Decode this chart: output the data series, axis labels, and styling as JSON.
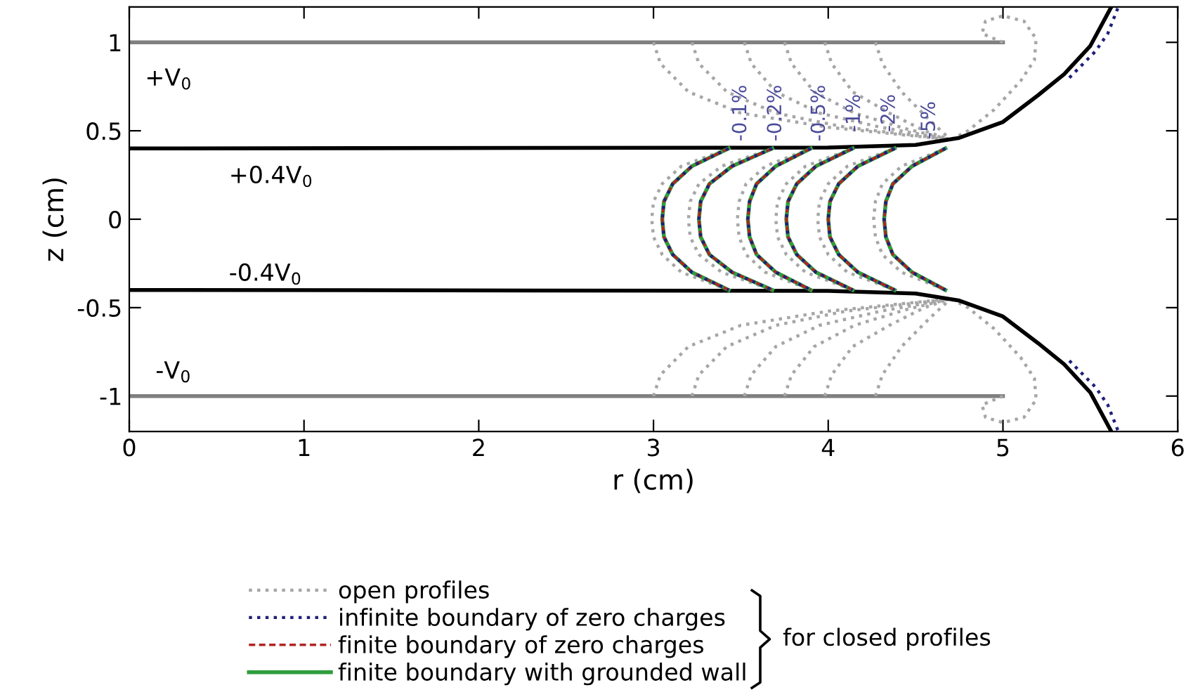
{
  "chart_data": {
    "type": "line",
    "xlabel": "r (cm)",
    "ylabel": "z (cm)",
    "xlim": [
      0,
      6
    ],
    "ylim": [
      -1.2,
      1.2
    ],
    "xticks": [
      0,
      1,
      2,
      3,
      4,
      5,
      6
    ],
    "yticks": [
      -1,
      -0.5,
      0,
      0.5,
      1
    ],
    "grid": false,
    "legend": "bottom",
    "series": [
      {
        "color": "#808080",
        "line_style": "solid",
        "x": [
          0,
          5
        ],
        "values": [
          1,
          1
        ]
      },
      {
        "color": "#808080",
        "line_style": "solid",
        "x": [
          0,
          5
        ],
        "values": [
          -1,
          -1
        ]
      },
      {
        "name": "open profiles",
        "color": "#a6a6a6",
        "line_style": "dotted",
        "x": [
          5.0,
          4.88,
          4.9,
          5.0,
          5.12,
          5.19,
          5.18,
          5.1,
          4.95,
          4.8,
          4.7
        ],
        "values": [
          1,
          1.05,
          1.12,
          1.15,
          1.12,
          1.02,
          0.9,
          0.78,
          0.62,
          0.5,
          0.45
        ]
      },
      {
        "color": "#a6a6a6",
        "line_style": "dotted",
        "x": [
          5.0,
          4.88,
          4.9,
          5.0,
          5.12,
          5.19,
          5.18,
          5.1,
          4.95,
          4.8,
          4.7
        ],
        "values": [
          -1,
          -1.05,
          -1.12,
          -1.15,
          -1.12,
          -1.02,
          -0.9,
          -0.78,
          -0.62,
          -0.5,
          -0.45
        ]
      },
      {
        "color": "#a6a6a6",
        "line_style": "dotted",
        "x": [
          3.0,
          3.04,
          3.2,
          3.5,
          4.0,
          4.7
        ],
        "values": [
          1,
          0.88,
          0.72,
          0.6,
          0.52,
          0.45
        ]
      },
      {
        "color": "#a6a6a6",
        "line_style": "dotted",
        "x": [
          3.22,
          3.26,
          3.42,
          3.7,
          4.1,
          4.7
        ],
        "values": [
          1,
          0.88,
          0.72,
          0.6,
          0.52,
          0.45
        ]
      },
      {
        "color": "#a6a6a6",
        "line_style": "dotted",
        "x": [
          3.52,
          3.56,
          3.7,
          3.95,
          4.3,
          4.7
        ],
        "values": [
          1,
          0.88,
          0.72,
          0.6,
          0.52,
          0.45
        ]
      },
      {
        "color": "#a6a6a6",
        "line_style": "dotted",
        "x": [
          3.75,
          3.79,
          3.92,
          4.15,
          4.45,
          4.7
        ],
        "values": [
          1,
          0.88,
          0.72,
          0.6,
          0.51,
          0.45
        ]
      },
      {
        "color": "#a6a6a6",
        "line_style": "dotted",
        "x": [
          3.98,
          4.02,
          4.14,
          4.35,
          4.55,
          4.7
        ],
        "values": [
          1,
          0.88,
          0.72,
          0.6,
          0.5,
          0.45
        ]
      },
      {
        "color": "#a6a6a6",
        "line_style": "dotted",
        "x": [
          4.27,
          4.31,
          4.42,
          4.58,
          4.7
        ],
        "values": [
          1,
          0.88,
          0.72,
          0.56,
          0.45
        ]
      },
      {
        "color": "#a6a6a6",
        "line_style": "dotted",
        "x": [
          3.0,
          3.04,
          3.2,
          3.5,
          4.0,
          4.7
        ],
        "values": [
          -1,
          -0.88,
          -0.72,
          -0.6,
          -0.52,
          -0.45
        ]
      },
      {
        "color": "#a6a6a6",
        "line_style": "dotted",
        "x": [
          3.22,
          3.26,
          3.42,
          3.7,
          4.1,
          4.7
        ],
        "values": [
          -1,
          -0.88,
          -0.72,
          -0.6,
          -0.52,
          -0.45
        ]
      },
      {
        "color": "#a6a6a6",
        "line_style": "dotted",
        "x": [
          3.52,
          3.56,
          3.7,
          3.95,
          4.3,
          4.7
        ],
        "values": [
          -1,
          -0.88,
          -0.72,
          -0.6,
          -0.52,
          -0.45
        ]
      },
      {
        "color": "#a6a6a6",
        "line_style": "dotted",
        "x": [
          3.75,
          3.79,
          3.92,
          4.15,
          4.45,
          4.7
        ],
        "values": [
          -1,
          -0.88,
          -0.72,
          -0.6,
          -0.51,
          -0.45
        ]
      },
      {
        "color": "#a6a6a6",
        "line_style": "dotted",
        "x": [
          3.98,
          4.02,
          4.14,
          4.35,
          4.55,
          4.7
        ],
        "values": [
          -1,
          -0.88,
          -0.72,
          -0.6,
          -0.5,
          -0.45
        ]
      },
      {
        "color": "#a6a6a6",
        "line_style": "dotted",
        "x": [
          4.27,
          4.31,
          4.42,
          4.58,
          4.7
        ],
        "values": [
          -1,
          -0.88,
          -0.72,
          -0.56,
          -0.45
        ]
      },
      {
        "color": "#a6a6a6",
        "line_style": "dotted",
        "x": [
          3.43,
          3.16,
          3.05,
          3.0,
          2.99,
          3.0,
          3.05,
          3.16,
          3.43
        ],
        "values": [
          0.4,
          0.3,
          0.2,
          0.1,
          0,
          -0.1,
          -0.2,
          -0.3,
          -0.4
        ]
      },
      {
        "color": "#a6a6a6",
        "line_style": "dotted",
        "x": [
          3.68,
          3.39,
          3.26,
          3.21,
          3.2,
          3.21,
          3.26,
          3.39,
          3.68
        ],
        "values": [
          0.4,
          0.3,
          0.2,
          0.1,
          0,
          -0.1,
          -0.2,
          -0.3,
          -0.4
        ]
      },
      {
        "color": "#a6a6a6",
        "line_style": "dotted",
        "x": [
          3.9,
          3.64,
          3.53,
          3.49,
          3.48,
          3.49,
          3.53,
          3.64,
          3.9
        ],
        "values": [
          0.4,
          0.3,
          0.2,
          0.1,
          0,
          -0.1,
          -0.2,
          -0.3,
          -0.4
        ]
      },
      {
        "color": "#a6a6a6",
        "line_style": "dotted",
        "x": [
          4.14,
          3.87,
          3.76,
          3.71,
          3.7,
          3.71,
          3.76,
          3.87,
          4.14
        ],
        "values": [
          0.4,
          0.3,
          0.2,
          0.1,
          0,
          -0.1,
          -0.2,
          -0.3,
          -0.4
        ]
      },
      {
        "color": "#a6a6a6",
        "line_style": "dotted",
        "x": [
          4.38,
          4.11,
          4.0,
          3.95,
          3.94,
          3.95,
          4.0,
          4.11,
          4.38
        ],
        "values": [
          0.4,
          0.3,
          0.2,
          0.1,
          0,
          -0.1,
          -0.2,
          -0.3,
          -0.4
        ]
      },
      {
        "color": "#a6a6a6",
        "line_style": "dotted",
        "x": [
          4.67,
          4.42,
          4.31,
          4.27,
          4.26,
          4.27,
          4.31,
          4.42,
          4.67
        ],
        "values": [
          0.4,
          0.3,
          0.2,
          0.1,
          0,
          -0.1,
          -0.2,
          -0.3,
          -0.4
        ]
      },
      {
        "color": "#000000",
        "line_style": "solid",
        "x": [
          0,
          4.0,
          4.5,
          4.75,
          5.0,
          5.2,
          5.35,
          5.5,
          5.62
        ],
        "values": [
          0.4,
          0.405,
          0.42,
          0.46,
          0.55,
          0.7,
          0.82,
          0.98,
          1.2
        ]
      },
      {
        "color": "#000000",
        "line_style": "solid",
        "x": [
          0,
          4.0,
          4.5,
          4.75,
          5.0,
          5.2,
          5.35,
          5.5,
          5.62
        ],
        "values": [
          -0.4,
          -0.405,
          -0.42,
          -0.46,
          -0.55,
          -0.7,
          -0.82,
          -0.98,
          -1.2
        ]
      },
      {
        "color": "#1f1f7a",
        "line_style": "dotted",
        "x": [
          5.38,
          5.53,
          5.6,
          5.66
        ],
        "values": [
          0.8,
          0.95,
          1.05,
          1.2
        ]
      },
      {
        "color": "#1f1f7a",
        "line_style": "dotted",
        "x": [
          5.38,
          5.53,
          5.6,
          5.66
        ],
        "values": [
          -0.8,
          -0.95,
          -1.05,
          -1.2
        ]
      },
      {
        "name": "finite boundary with grounded wall",
        "color": "#2e9e3e",
        "line_style": "solid",
        "x": [
          3.43,
          3.22,
          3.11,
          3.06,
          3.05,
          3.06,
          3.11,
          3.22,
          3.43
        ],
        "values": [
          0.4,
          0.3,
          0.2,
          0.1,
          0,
          -0.1,
          -0.2,
          -0.3,
          -0.4
        ]
      },
      {
        "color": "#2e9e3e",
        "line_style": "solid",
        "x": [
          3.68,
          3.45,
          3.32,
          3.27,
          3.26,
          3.27,
          3.32,
          3.45,
          3.68
        ],
        "values": [
          0.4,
          0.3,
          0.2,
          0.1,
          0,
          -0.1,
          -0.2,
          -0.3,
          -0.4
        ]
      },
      {
        "color": "#2e9e3e",
        "line_style": "solid",
        "x": [
          3.9,
          3.7,
          3.59,
          3.55,
          3.54,
          3.55,
          3.59,
          3.7,
          3.9
        ],
        "values": [
          0.4,
          0.3,
          0.2,
          0.1,
          0,
          -0.1,
          -0.2,
          -0.3,
          -0.4
        ]
      },
      {
        "color": "#2e9e3e",
        "line_style": "solid",
        "x": [
          4.14,
          3.93,
          3.82,
          3.77,
          3.76,
          3.77,
          3.82,
          3.93,
          4.14
        ],
        "values": [
          0.4,
          0.3,
          0.2,
          0.1,
          0,
          -0.1,
          -0.2,
          -0.3,
          -0.4
        ]
      },
      {
        "color": "#2e9e3e",
        "line_style": "solid",
        "x": [
          4.38,
          4.17,
          4.06,
          4.01,
          4.0,
          4.01,
          4.06,
          4.17,
          4.38
        ],
        "values": [
          0.4,
          0.3,
          0.2,
          0.1,
          0,
          -0.1,
          -0.2,
          -0.3,
          -0.4
        ]
      },
      {
        "color": "#2e9e3e",
        "line_style": "solid",
        "x": [
          4.67,
          4.48,
          4.37,
          4.33,
          4.32,
          4.33,
          4.37,
          4.48,
          4.67
        ],
        "values": [
          0.4,
          0.3,
          0.2,
          0.1,
          0,
          -0.1,
          -0.2,
          -0.3,
          -0.4
        ]
      },
      {
        "name": "finite boundary of zero charges",
        "color": "#b22222",
        "line_style": "dashed",
        "x": [
          3.43,
          3.22,
          3.11,
          3.06,
          3.05,
          3.06,
          3.11,
          3.22,
          3.43
        ],
        "values": [
          0.4,
          0.3,
          0.2,
          0.1,
          0,
          -0.1,
          -0.2,
          -0.3,
          -0.4
        ]
      },
      {
        "color": "#b22222",
        "line_style": "dashed",
        "x": [
          3.68,
          3.45,
          3.32,
          3.27,
          3.26,
          3.27,
          3.32,
          3.45,
          3.68
        ],
        "values": [
          0.4,
          0.3,
          0.2,
          0.1,
          0,
          -0.1,
          -0.2,
          -0.3,
          -0.4
        ]
      },
      {
        "color": "#b22222",
        "line_style": "dashed",
        "x": [
          3.9,
          3.7,
          3.59,
          3.55,
          3.54,
          3.55,
          3.59,
          3.7,
          3.9
        ],
        "values": [
          0.4,
          0.3,
          0.2,
          0.1,
          0,
          -0.1,
          -0.2,
          -0.3,
          -0.4
        ]
      },
      {
        "color": "#b22222",
        "line_style": "dashed",
        "x": [
          4.14,
          3.93,
          3.82,
          3.77,
          3.76,
          3.77,
          3.82,
          3.93,
          4.14
        ],
        "values": [
          0.4,
          0.3,
          0.2,
          0.1,
          0,
          -0.1,
          -0.2,
          -0.3,
          -0.4
        ]
      },
      {
        "color": "#b22222",
        "line_style": "dashed",
        "x": [
          4.38,
          4.17,
          4.06,
          4.01,
          4.0,
          4.01,
          4.06,
          4.17,
          4.38
        ],
        "values": [
          0.4,
          0.3,
          0.2,
          0.1,
          0,
          -0.1,
          -0.2,
          -0.3,
          -0.4
        ]
      },
      {
        "color": "#b22222",
        "line_style": "dashed",
        "x": [
          4.67,
          4.48,
          4.37,
          4.33,
          4.32,
          4.33,
          4.37,
          4.48,
          4.67
        ],
        "values": [
          0.4,
          0.3,
          0.2,
          0.1,
          0,
          -0.1,
          -0.2,
          -0.3,
          -0.4
        ]
      },
      {
        "name": "infinite boundary of zero charges",
        "color": "#1f1f7a",
        "line_style": "dotted",
        "x": [
          3.43,
          3.22,
          3.11,
          3.06,
          3.05,
          3.06,
          3.11,
          3.22,
          3.43
        ],
        "values": [
          0.4,
          0.3,
          0.2,
          0.1,
          0,
          -0.1,
          -0.2,
          -0.3,
          -0.4
        ]
      },
      {
        "color": "#1f1f7a",
        "line_style": "dotted",
        "x": [
          3.68,
          3.45,
          3.32,
          3.27,
          3.26,
          3.27,
          3.32,
          3.45,
          3.68
        ],
        "values": [
          0.4,
          0.3,
          0.2,
          0.1,
          0,
          -0.1,
          -0.2,
          -0.3,
          -0.4
        ]
      },
      {
        "color": "#1f1f7a",
        "line_style": "dotted",
        "x": [
          3.9,
          3.7,
          3.59,
          3.55,
          3.54,
          3.55,
          3.59,
          3.7,
          3.9
        ],
        "values": [
          0.4,
          0.3,
          0.2,
          0.1,
          0,
          -0.1,
          -0.2,
          -0.3,
          -0.4
        ]
      },
      {
        "color": "#1f1f7a",
        "line_style": "dotted",
        "x": [
          4.14,
          3.93,
          3.82,
          3.77,
          3.76,
          3.77,
          3.82,
          3.93,
          4.14
        ],
        "values": [
          0.4,
          0.3,
          0.2,
          0.1,
          0,
          -0.1,
          -0.2,
          -0.3,
          -0.4
        ]
      },
      {
        "color": "#1f1f7a",
        "line_style": "dotted",
        "x": [
          4.38,
          4.17,
          4.06,
          4.01,
          4.0,
          4.01,
          4.06,
          4.17,
          4.38
        ],
        "values": [
          0.4,
          0.3,
          0.2,
          0.1,
          0,
          -0.1,
          -0.2,
          -0.3,
          -0.4
        ]
      },
      {
        "color": "#1f1f7a",
        "line_style": "dotted",
        "x": [
          4.67,
          4.48,
          4.37,
          4.33,
          4.32,
          4.33,
          4.37,
          4.48,
          4.67
        ],
        "values": [
          0.4,
          0.3,
          0.2,
          0.1,
          0,
          -0.1,
          -0.2,
          -0.3,
          -0.4
        ]
      }
    ],
    "annotations": [
      "+V$_{0}$",
      "+0.4V$_{0}$",
      "-0.4V$_{0}$",
      "-V$_{0}$",
      {
        "text": "-0.1%",
        "x": 3.5,
        "y": 0.6
      },
      {
        "text": "-0.2%",
        "x": 3.7,
        "y": 0.6
      },
      {
        "text": "-0.5%",
        "x": 3.95,
        "y": 0.6
      },
      {
        "text": "-1%",
        "x": 4.15,
        "y": 0.6
      },
      {
        "text": "-2%",
        "x": 4.35,
        "y": 0.6
      },
      {
        "text": "-5%",
        "x": 4.58,
        "y": 0.56
      },
      "for closed profiles"
    ]
  }
}
